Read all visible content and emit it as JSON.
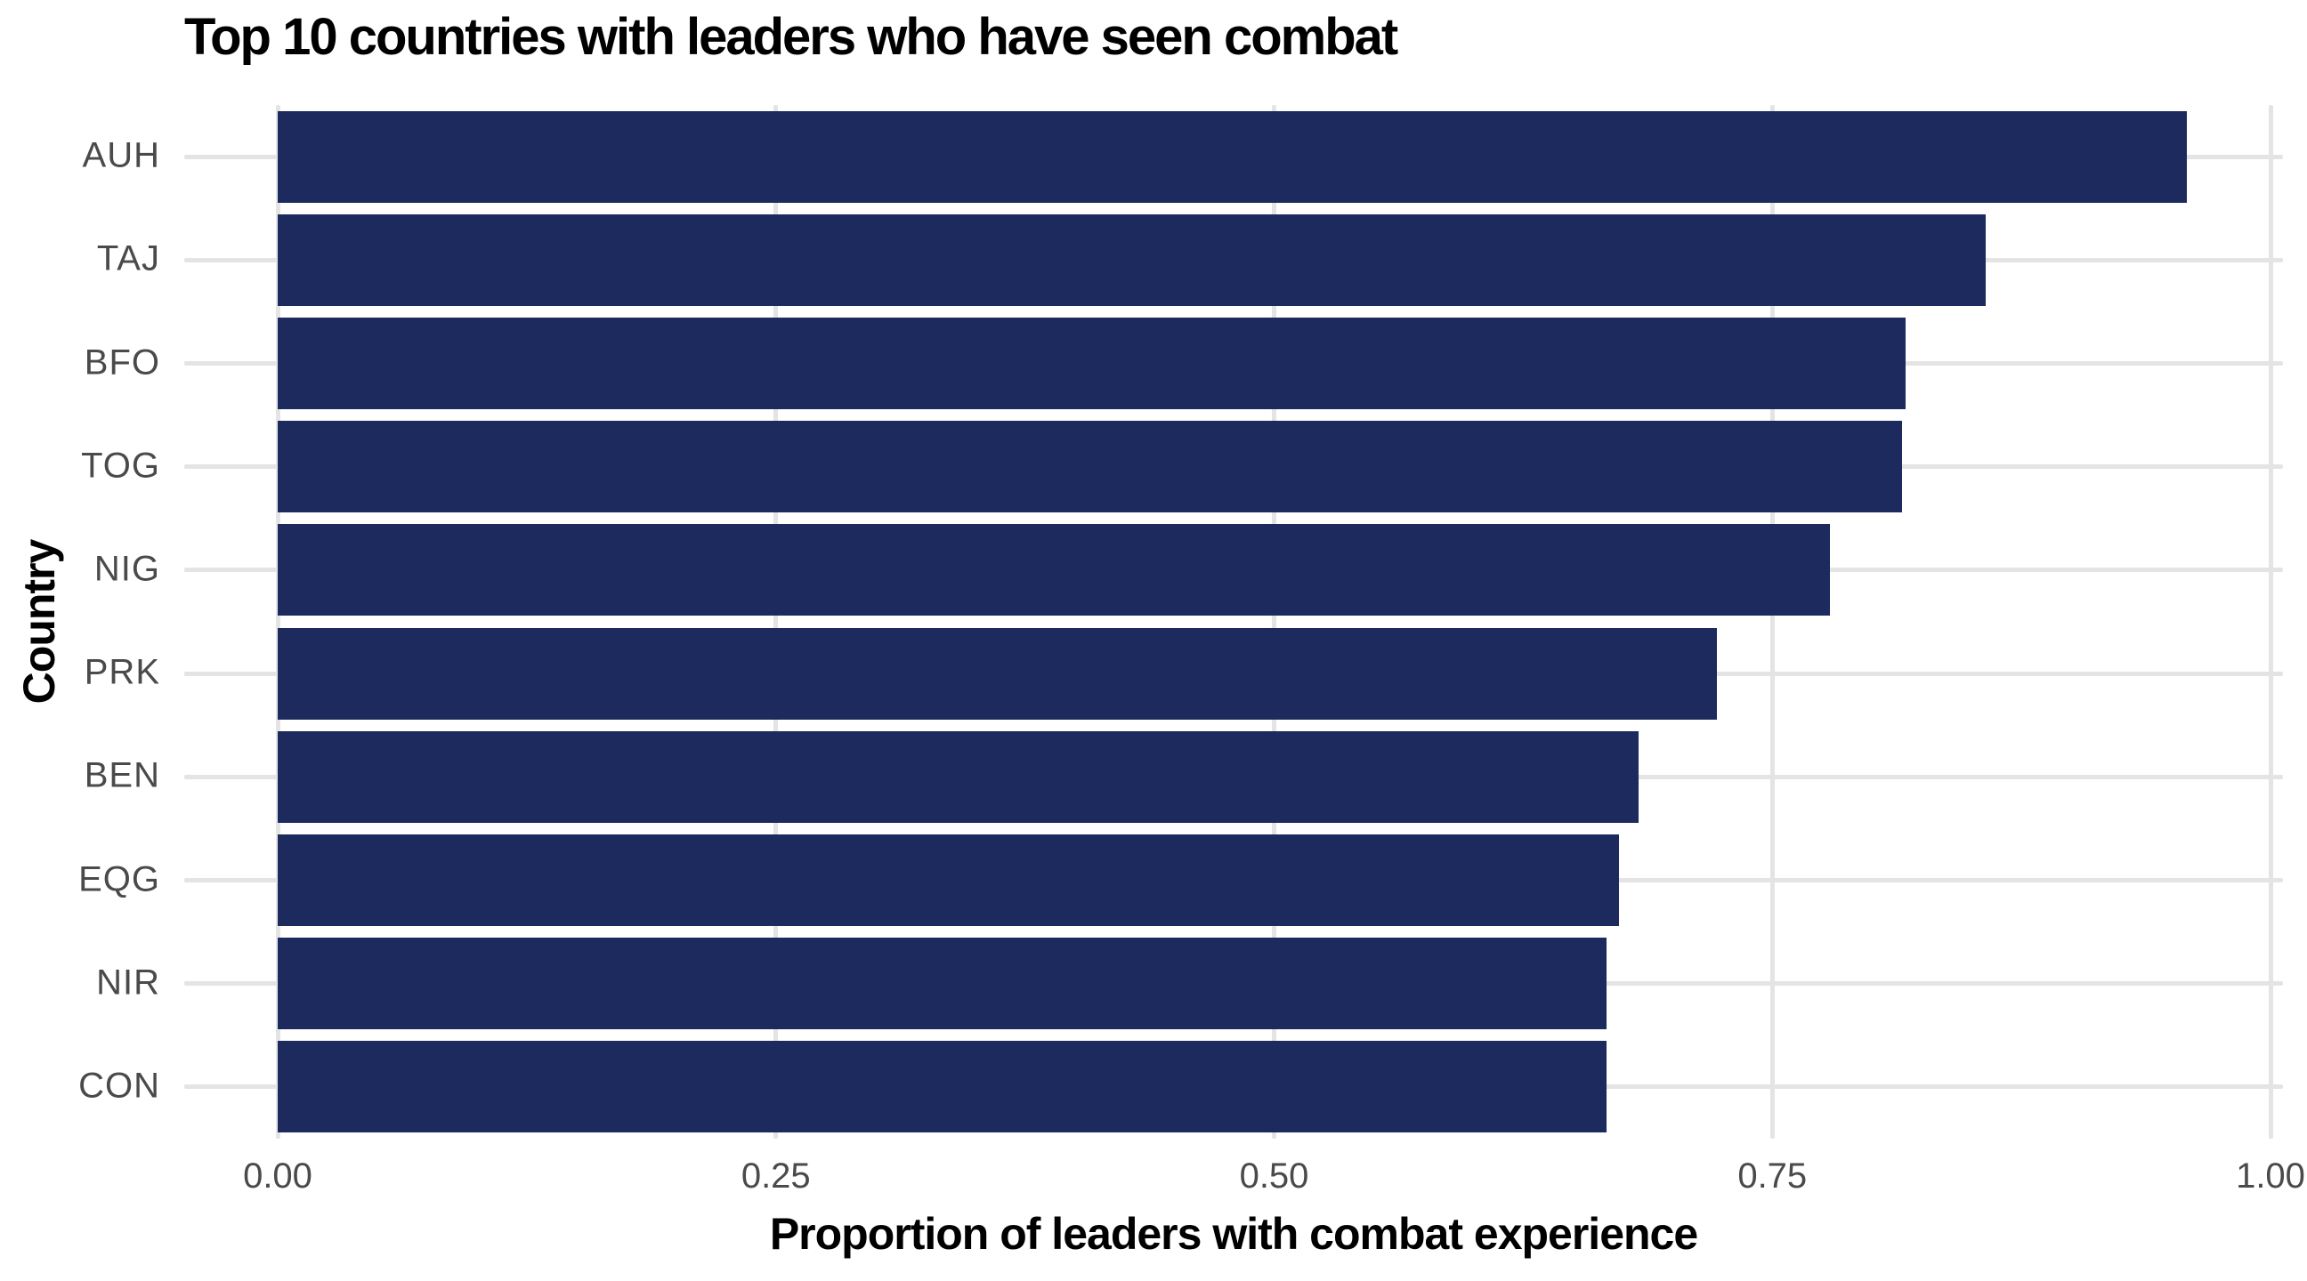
{
  "chart_data": {
    "type": "bar",
    "orientation": "horizontal",
    "title": "Top 10 countries with leaders who have seen combat",
    "xlabel": "Proportion of leaders with combat experience",
    "ylabel": "Country",
    "categories": [
      "AUH",
      "TAJ",
      "BFO",
      "TOG",
      "NIG",
      "PRK",
      "BEN",
      "EQG",
      "NIR",
      "CON"
    ],
    "values": [
      0.958,
      0.857,
      0.817,
      0.815,
      0.779,
      0.722,
      0.683,
      0.673,
      0.667,
      0.667
    ],
    "xlim": [
      0,
      1
    ],
    "x_ticks": [
      0,
      0.25,
      0.5,
      0.75,
      1
    ],
    "x_tick_labels": [
      "0.00",
      "0.25",
      "0.50",
      "0.75",
      "1.00"
    ],
    "grid": true,
    "legend": false,
    "bar_color": "#1c2a5e",
    "grid_color": "#e4e4e4",
    "tick_label_color": "#4a4a4a",
    "title_color": "#000000"
  }
}
